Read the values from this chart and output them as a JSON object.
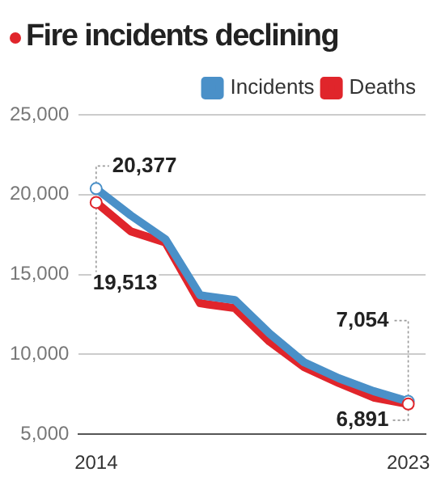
{
  "chart_data": {
    "type": "line",
    "title": "Fire incidents declining",
    "categories": [
      "2014",
      null,
      null,
      null,
      null,
      null,
      null,
      null,
      null,
      "2023"
    ],
    "series": [
      {
        "name": "Incidents",
        "color": "#4a90c8",
        "values": [
          20377,
          18700,
          17200,
          13700,
          13400,
          11300,
          9500,
          8500,
          7700,
          7054
        ]
      },
      {
        "name": "Deaths",
        "color": "#e0252b",
        "values": [
          19513,
          17700,
          17000,
          13200,
          12900,
          10800,
          9200,
          8200,
          7300,
          6891
        ]
      }
    ],
    "ylim": [
      5000,
      25000
    ],
    "yticks": [
      {
        "value": 5000,
        "label": "5,000"
      },
      {
        "value": 10000,
        "label": "10,000"
      },
      {
        "value": 15000,
        "label": "15,000"
      },
      {
        "value": 20000,
        "label": "20,000"
      },
      {
        "value": 25000,
        "label": "25,000"
      }
    ],
    "grid": "y",
    "legend": "top right",
    "annotations": [
      {
        "text": "20,377",
        "x": "2014",
        "y": 20377
      },
      {
        "text": "19,513",
        "x": "2014",
        "y": 19513
      },
      {
        "text": "7,054",
        "x": "2023",
        "y": 7054
      },
      {
        "text": "6,891",
        "x": "2023",
        "y": 6891
      }
    ]
  }
}
